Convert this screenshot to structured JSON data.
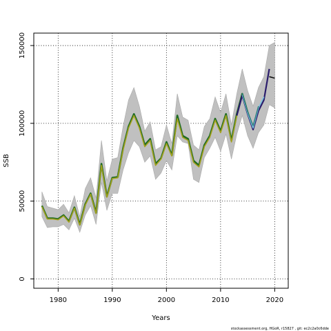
{
  "chart_data": {
    "type": "line",
    "xlabel": "Years",
    "ylabel": "SSB",
    "xlim": [
      1975.5,
      2022.5
    ],
    "ylim": [
      -6000,
      158000
    ],
    "x_ticks": [
      1980,
      1990,
      2000,
      2010,
      2020
    ],
    "y_ticks": [
      0,
      50000,
      100000,
      150000
    ],
    "grid": true,
    "legend": "none",
    "colors": {
      "band": "#c0c0c0",
      "band_edge": "#a8a8a8",
      "main_dark": "#1f6b22",
      "main_olive": "#a4a11c",
      "main_green": "#3aa63a",
      "retro_navy": "#2a1c6b",
      "retro_sky": "#7cc3e0",
      "retro_teal": "#2a7a78",
      "final_dark": "#111111"
    },
    "confidence_band": {
      "x": [
        1977,
        1978,
        1979,
        1980,
        1981,
        1982,
        1983,
        1984,
        1985,
        1986,
        1987,
        1988,
        1989,
        1990,
        1991,
        1992,
        1993,
        1994,
        1995,
        1996,
        1997,
        1998,
        1999,
        2000,
        2001,
        2002,
        2003,
        2004,
        2005,
        2006,
        2007,
        2008,
        2009,
        2010,
        2011,
        2012,
        2013,
        2014,
        2015,
        2016,
        2017,
        2018,
        2019,
        2020
      ],
      "upper": [
        56000,
        46500,
        45500,
        44500,
        48000,
        42500,
        53500,
        40000,
        58000,
        65000,
        52000,
        89000,
        63000,
        77000,
        78000,
        98000,
        115000,
        123000,
        111000,
        95000,
        101000,
        83000,
        85000,
        99000,
        87000,
        119000,
        104000,
        102000,
        86000,
        83000,
        98000,
        103000,
        117000,
        107000,
        119000,
        99000,
        119000,
        135000,
        121000,
        111000,
        123000,
        130000,
        150000,
        152000
      ],
      "lower": [
        40000,
        33000,
        33500,
        33500,
        35000,
        31500,
        39000,
        30000,
        41000,
        47000,
        35000,
        62000,
        44000,
        55000,
        55000,
        70000,
        81000,
        89000,
        85000,
        75000,
        79000,
        64000,
        68000,
        76000,
        70000,
        92000,
        88000,
        87000,
        64000,
        62000,
        78000,
        84000,
        91000,
        82000,
        93000,
        77000,
        93000,
        105000,
        92000,
        84000,
        94000,
        99000,
        112000,
        110000
      ]
    },
    "series": [
      {
        "x": [
          1977,
          1978,
          1979,
          1980,
          1981,
          1982,
          1983,
          1984,
          1985,
          1986,
          1987,
          1988,
          1989,
          1990,
          1991,
          1992,
          1993,
          1994,
          1995,
          1996,
          1997,
          1998,
          1999,
          2000,
          2001,
          2002,
          2003,
          2004,
          2005,
          2006,
          2007,
          2008,
          2009,
          2010,
          2011,
          2012,
          2013,
          2014,
          2015,
          2016
        ],
        "values": [
          47000,
          39000,
          39000,
          38500,
          41000,
          37000,
          46000,
          35000,
          48000,
          55000,
          42500,
          74000,
          53000,
          65000,
          65500,
          84000,
          98000,
          106000,
          98000,
          86000,
          90000,
          74000,
          77500,
          88000,
          79500,
          105000,
          92000,
          90000,
          76000,
          73000,
          86000,
          92000,
          103000,
          95000,
          106000,
          89000,
          106000,
          119000,
          107000,
          97000
        ],
        "color_key": "main_dark"
      },
      {
        "x": [
          1977,
          1978,
          1979,
          1980,
          1981,
          1982,
          1983,
          1984,
          1985,
          1986,
          1987,
          1988,
          1989,
          1990,
          1991,
          1992,
          1993,
          1994,
          1995,
          1996,
          1997,
          1998,
          1999,
          2000,
          2001,
          2002,
          2003,
          2004,
          2005,
          2006,
          2007,
          2008,
          2009,
          2010,
          2011,
          2012,
          2013,
          2014,
          2015,
          2016
        ],
        "values": [
          46500,
          38500,
          38500,
          38000,
          40500,
          36500,
          45500,
          34500,
          47500,
          54500,
          42000,
          73000,
          52500,
          64500,
          65000,
          83000,
          97000,
          105000,
          97000,
          85000,
          89000,
          73000,
          77000,
          87000,
          79000,
          103000,
          91000,
          89000,
          75000,
          72000,
          85000,
          91000,
          102000,
          94000,
          105000,
          88000,
          105000,
          118000,
          106000,
          96500
        ],
        "color_key": "main_olive"
      },
      {
        "x": [
          2013,
          2014,
          2015,
          2016,
          2017,
          2018,
          2019
        ],
        "values": [
          105000,
          118000,
          106000,
          96000,
          108000,
          115000,
          135000
        ],
        "color_key": "retro_navy"
      },
      {
        "x": [
          2014,
          2015,
          2016,
          2017,
          2018
        ],
        "values": [
          118500,
          106500,
          97000,
          110000,
          117000
        ],
        "color_key": "retro_sky"
      },
      {
        "x": [
          2014,
          2015,
          2016,
          2017
        ],
        "values": [
          119500,
          107500,
          98500,
          111000
        ],
        "color_key": "retro_teal"
      },
      {
        "x": [
          2019,
          2020
        ],
        "values": [
          130000,
          129000
        ],
        "color_key": "final_dark"
      }
    ]
  },
  "footer": {
    "text": "stockassessment.org, HGoR, r15827 , git: ec2c2a0c6dde"
  }
}
